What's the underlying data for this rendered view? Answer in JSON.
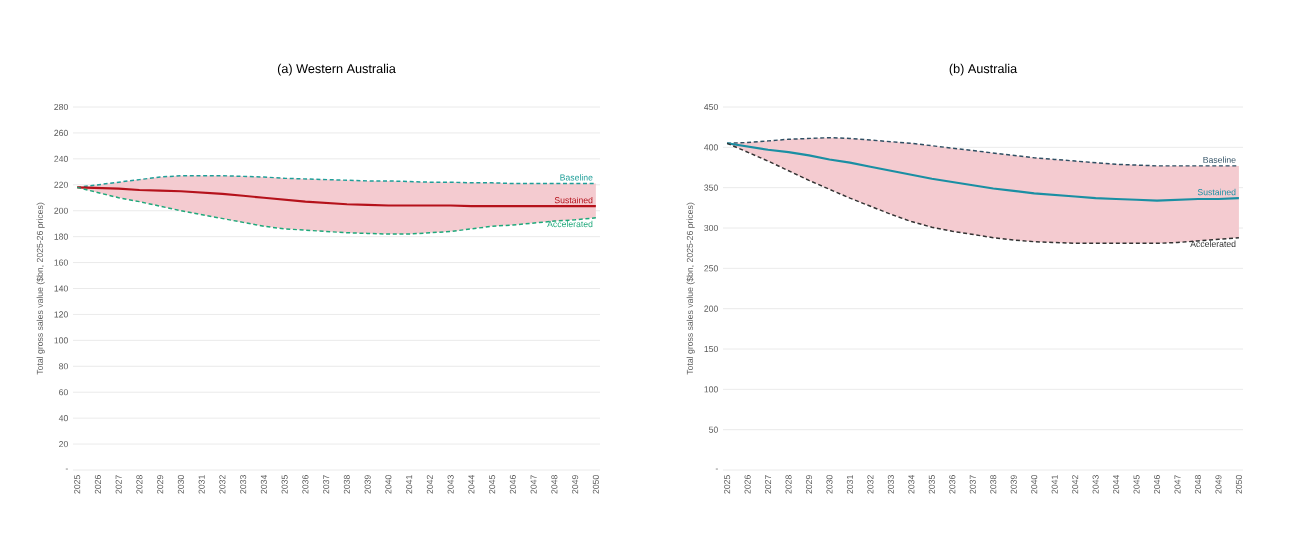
{
  "chart_data": [
    {
      "type": "line",
      "title": "(a) Western Australia",
      "ylabel": "Total gross sales value ($bn, 2025-26 prices)",
      "categories": [
        "2025",
        "2026",
        "2027",
        "2028",
        "2029",
        "2030",
        "2031",
        "2032",
        "2033",
        "2034",
        "2035",
        "2036",
        "2037",
        "2038",
        "2039",
        "2040",
        "2041",
        "2042",
        "2043",
        "2044",
        "2045",
        "2046",
        "2047",
        "2048",
        "2049",
        "2050"
      ],
      "ylim": [
        0,
        280
      ],
      "yticks": [
        {
          "value": 0,
          "label": "-"
        },
        20,
        40,
        60,
        80,
        100,
        120,
        140,
        160,
        180,
        200,
        220,
        240,
        260,
        280
      ],
      "grid": "y",
      "marker": "none",
      "series": [
        {
          "name": "Baseline",
          "color": "#1f9e98",
          "line_style": "dashed",
          "values": [
            218,
            220,
            222,
            224,
            226,
            227,
            227,
            227,
            226.5,
            226,
            225,
            224.5,
            224,
            223.5,
            223,
            223,
            222.5,
            222,
            222,
            221.5,
            221.5,
            221,
            221,
            221,
            221,
            221
          ]
        },
        {
          "name": "Sustained",
          "color": "#b5121b",
          "line_style": "solid",
          "values": [
            218,
            217.5,
            217,
            216,
            215.5,
            215,
            214,
            213,
            211.5,
            210,
            208.5,
            207,
            206,
            205,
            204.5,
            204,
            204,
            204,
            204,
            203.5,
            203.5,
            203.5,
            203.5,
            203.5,
            203.5,
            203.5
          ],
          "upper": [
            218,
            220,
            222,
            224,
            226,
            227,
            227,
            227,
            226.5,
            226,
            225,
            224.5,
            224,
            223.5,
            223,
            223,
            222.5,
            222,
            222,
            221.5,
            221.5,
            221,
            221,
            221,
            221,
            221
          ],
          "lower": [
            218,
            214,
            210,
            207,
            203.5,
            200,
            197,
            194,
            191,
            188,
            186,
            185,
            184,
            183,
            182.5,
            182,
            182,
            183,
            184,
            186,
            188,
            189,
            190.5,
            192,
            193,
            194.5
          ]
        },
        {
          "name": "Accelerated",
          "color": "#1ea87a",
          "line_style": "dashed",
          "values": [
            218,
            214,
            210,
            207,
            203.5,
            200,
            197,
            194,
            191,
            188,
            186,
            185,
            184,
            183,
            182.5,
            182,
            182,
            183,
            184,
            186,
            188,
            189,
            190.5,
            192,
            193,
            194.5
          ]
        }
      ]
    },
    {
      "type": "line",
      "title": "(b) Australia",
      "ylabel": "Total gross sales value ($bn, 2025-26 prices)",
      "categories": [
        "2025",
        "2026",
        "2027",
        "2028",
        "2029",
        "2030",
        "2031",
        "2032",
        "2033",
        "2034",
        "2035",
        "2036",
        "2037",
        "2038",
        "2039",
        "2040",
        "2041",
        "2042",
        "2043",
        "2044",
        "2045",
        "2046",
        "2047",
        "2048",
        "2049",
        "2050"
      ],
      "ylim": [
        0,
        450
      ],
      "yticks": [
        {
          "value": 0,
          "label": "-"
        },
        50,
        100,
        150,
        200,
        250,
        300,
        350,
        400,
        450
      ],
      "grid": "y",
      "marker": "none",
      "series": [
        {
          "name": "Baseline",
          "color": "#2f4f63",
          "line_style": "dashed",
          "values": [
            405,
            406,
            408,
            410,
            411,
            412,
            411,
            409,
            407,
            405,
            402,
            399,
            396,
            393,
            390,
            387,
            385,
            383,
            381,
            379,
            378,
            377,
            377,
            377,
            377,
            377
          ]
        },
        {
          "name": "Sustained",
          "color": "#1a8fa3",
          "line_style": "solid",
          "values": [
            405,
            401,
            397,
            394,
            390,
            385,
            381,
            376,
            371,
            366,
            361,
            357,
            353,
            349,
            346,
            343,
            341,
            339,
            337,
            336,
            335,
            334,
            335,
            336,
            336,
            337
          ],
          "upper": [
            405,
            406,
            408,
            410,
            411,
            412,
            411,
            409,
            407,
            405,
            402,
            399,
            396,
            393,
            390,
            387,
            385,
            383,
            381,
            379,
            378,
            377,
            377,
            377,
            377,
            377
          ],
          "lower": [
            405,
            394,
            383,
            371,
            359,
            348,
            337,
            327,
            317,
            308,
            301,
            296,
            292,
            288,
            285,
            283,
            282,
            281,
            281,
            281,
            281,
            281,
            282,
            284,
            286,
            288
          ]
        },
        {
          "name": "Accelerated",
          "color": "#333333",
          "line_style": "dashed",
          "values": [
            405,
            394,
            383,
            371,
            359,
            348,
            337,
            327,
            317,
            308,
            301,
            296,
            292,
            288,
            285,
            283,
            282,
            281,
            281,
            281,
            281,
            281,
            282,
            284,
            286,
            288
          ]
        }
      ]
    }
  ]
}
